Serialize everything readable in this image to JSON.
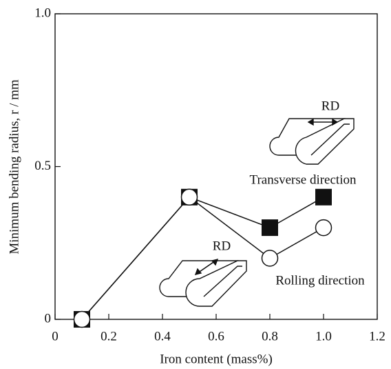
{
  "chart_data": {
    "type": "line",
    "xlabel": "Iron content (mass%)",
    "ylabel": "Minimum bending radius, r / mm",
    "xlim": [
      0,
      1.2
    ],
    "xticks": [
      0,
      0.2,
      0.4,
      0.6,
      0.8,
      {
        "value": 1,
        "label": "1.0"
      },
      1.2
    ],
    "ylim": [
      0,
      1
    ],
    "yticks": [
      0,
      0.5,
      {
        "value": 1,
        "label": "1.0"
      }
    ],
    "x": [
      0.1,
      0.5,
      0.8,
      1.0
    ],
    "series": [
      {
        "name": "Transverse direction",
        "color": "#111111",
        "marker": "square",
        "values": [
          0,
          0.4,
          0.3,
          0.4
        ]
      },
      {
        "name": "Rolling direction",
        "color": "#111111",
        "marker": "circle",
        "values": [
          0,
          0.4,
          0.2,
          0.3
        ]
      }
    ],
    "annotations": [
      "RD",
      "RD"
    ]
  }
}
